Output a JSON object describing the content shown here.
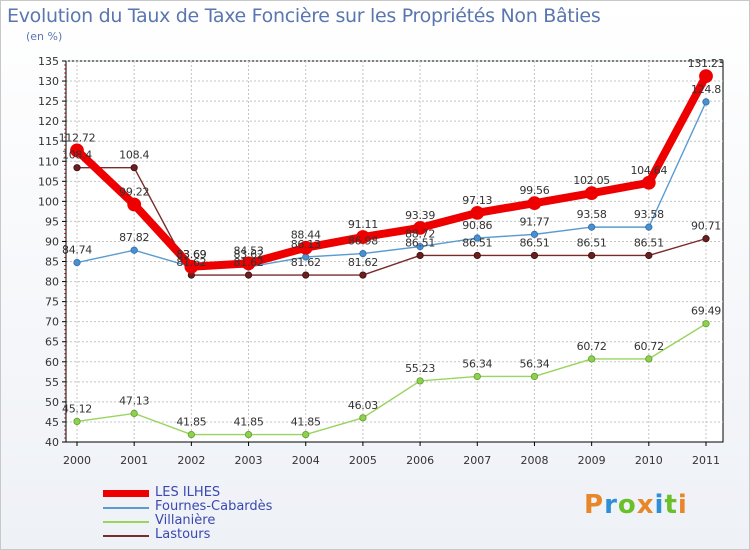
{
  "title": "Evolution du Taux de Taxe Foncière sur les Propriétés Non Bâties",
  "unit_label": "(en %)",
  "brand": "Proxiti",
  "brand_colors": [
    "#e8862a",
    "#2e8fd6",
    "#6bbf2a",
    "#e8862a",
    "#2e8fd6",
    "#6bbf2a",
    "#e8862a"
  ],
  "chart_data": {
    "type": "line",
    "title": "Evolution du Taux de Taxe Foncière sur les Propriétés Non Bâties",
    "ylabel": "(en %)",
    "xlabel": "",
    "x": [
      "2000",
      "2001",
      "2002",
      "2003",
      "2004",
      "2005",
      "2006",
      "2007",
      "2008",
      "2009",
      "2010",
      "2011"
    ],
    "ylim": [
      40,
      135
    ],
    "yticks": [
      "40",
      "45",
      "50",
      "55",
      "60",
      "65",
      "70",
      "75",
      "80",
      "85",
      "90",
      "95",
      "100",
      "105",
      "110",
      "115",
      "120",
      "125",
      "130",
      "135"
    ],
    "grid": true,
    "legend_position": "bottom-left",
    "series": [
      {
        "name": "LES ILHES",
        "color": "#ee0000",
        "values": [
          112.72,
          99.22,
          83.69,
          84.53,
          88.44,
          91.11,
          93.39,
          97.13,
          99.56,
          102.05,
          104.64,
          131.23
        ],
        "labels": [
          "112.72",
          "99.22",
          "83.69",
          "84.53",
          "88.44",
          "91.11",
          "93.39",
          "97.13",
          "99.56",
          "102.05",
          "104.64",
          "131.23"
        ]
      },
      {
        "name": "Fournes-Cabardès",
        "color": "#5a9ccf",
        "values": [
          84.74,
          87.82,
          83.69,
          83.62,
          86.13,
          86.98,
          88.72,
          90.86,
          91.77,
          93.58,
          93.58,
          124.8
        ],
        "labels": [
          "84.74",
          "87.82",
          "83.69",
          "83.62",
          "86.13",
          "86.98",
          "88.72",
          "90.86",
          "91.77",
          "93.58",
          "93.58",
          "124.8"
        ]
      },
      {
        "name": "Villanière",
        "color": "#99d45e",
        "values": [
          45.12,
          47.13,
          41.85,
          41.85,
          41.85,
          46.03,
          55.23,
          56.34,
          56.34,
          60.72,
          60.72,
          69.49
        ],
        "labels": [
          "45.12",
          "47.13",
          "41.85",
          "41.85",
          "41.85",
          "46.03",
          "55.23",
          "56.34",
          "56.34",
          "60.72",
          "60.72",
          "69.49"
        ]
      },
      {
        "name": "Lastours",
        "color": "#7a2b2b",
        "values": [
          108.4,
          108.4,
          81.62,
          81.62,
          81.62,
          81.62,
          86.51,
          86.51,
          86.51,
          86.51,
          86.51,
          90.71
        ],
        "labels": [
          "108.4",
          "108.4",
          "81.62",
          "81.62",
          "81.62",
          "81.62",
          "86.51",
          "86.51",
          "86.51",
          "86.51",
          "86.51",
          "90.71"
        ]
      }
    ]
  }
}
